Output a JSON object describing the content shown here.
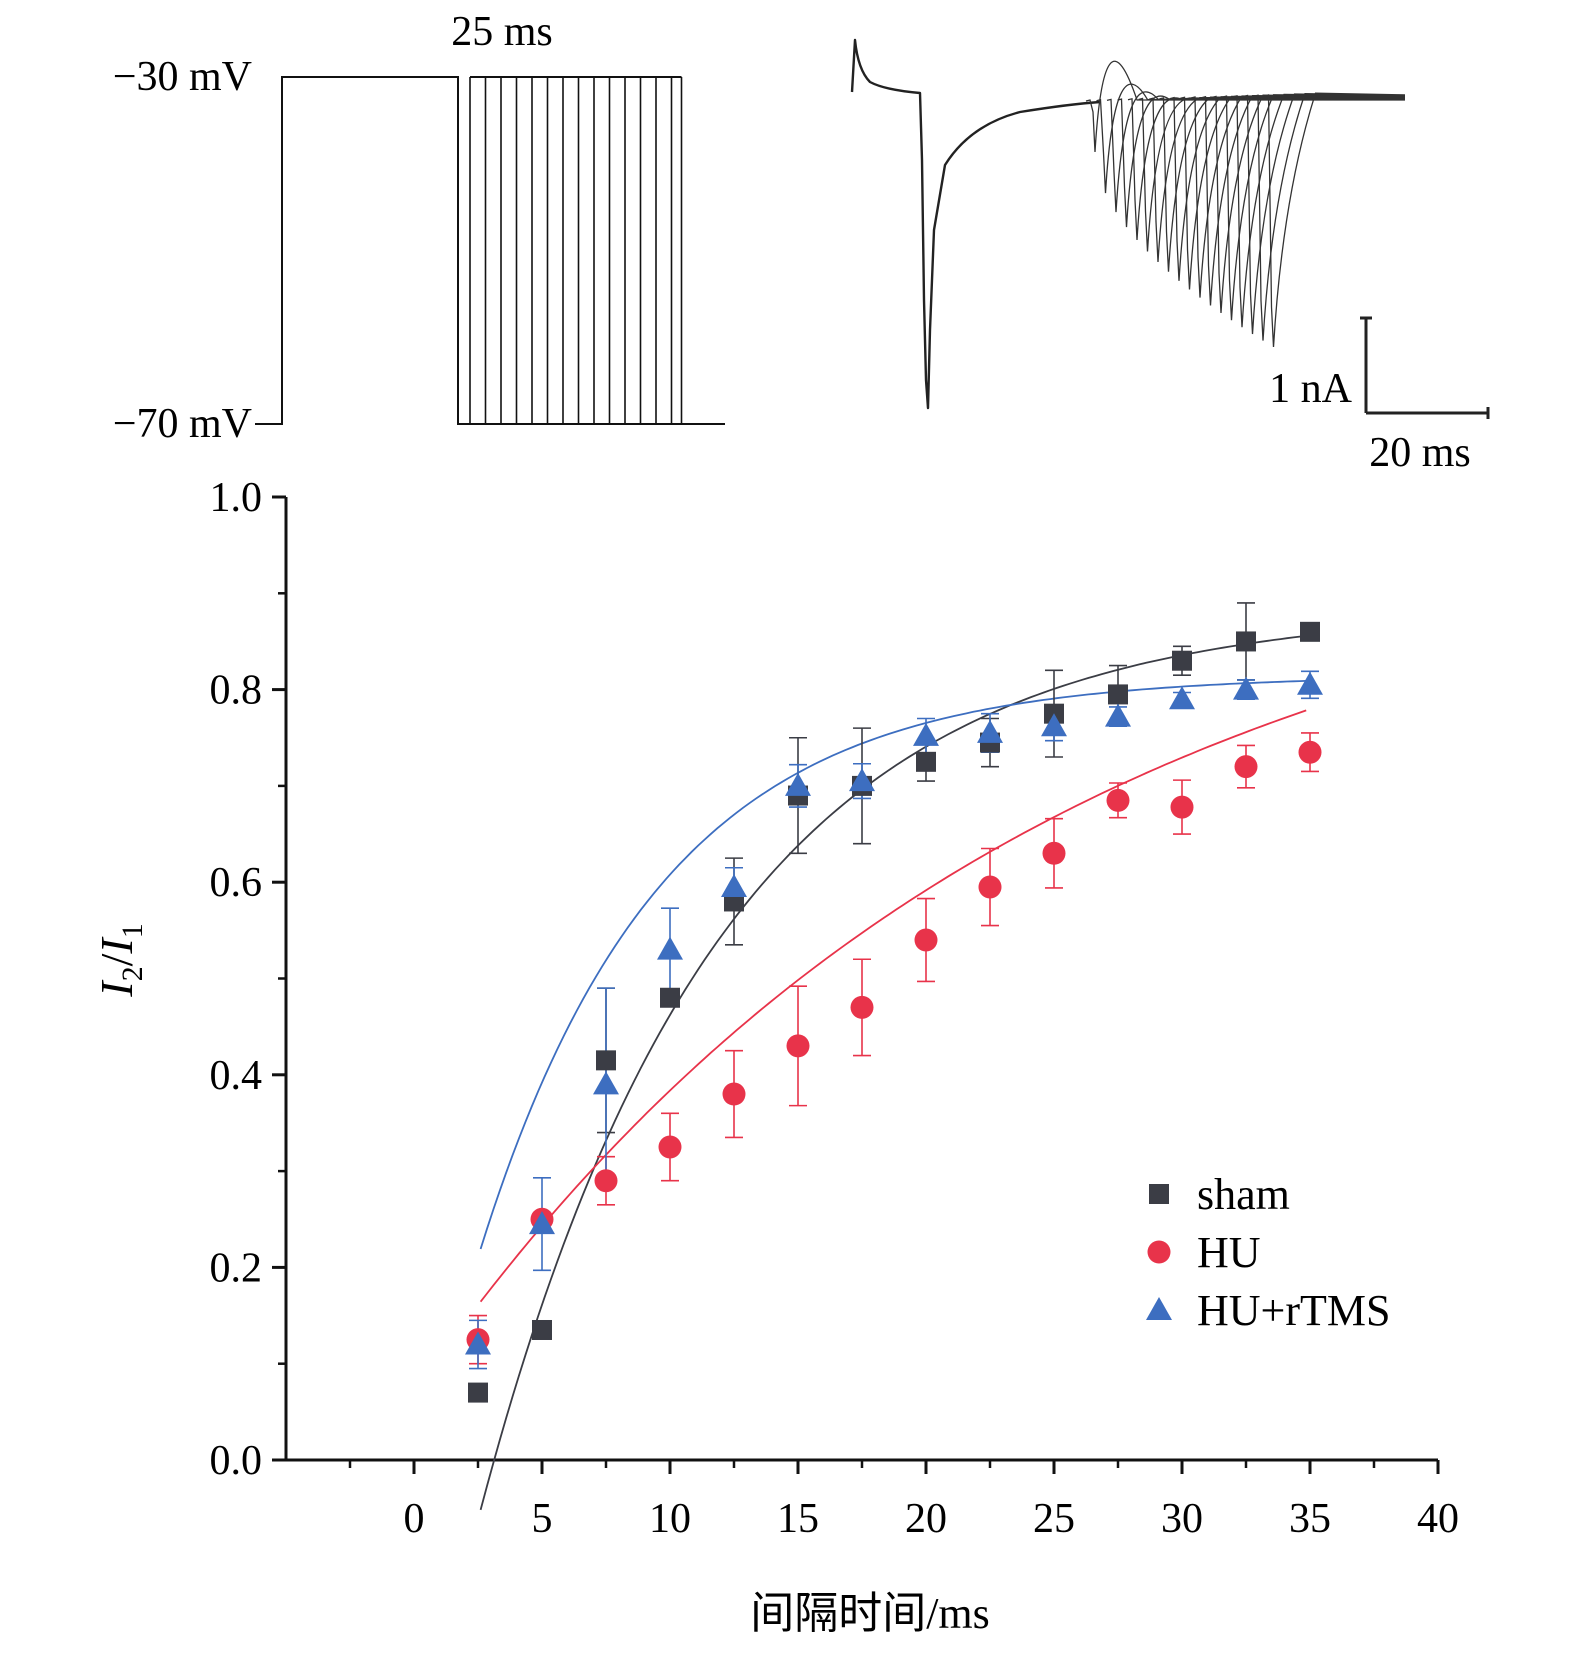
{
  "protocol": {
    "v_high_label": "−30 mV",
    "v_low_label": "−70 mV",
    "duration_label": "25 ms",
    "n_test_pulses": 14
  },
  "trace": {
    "current_scale_label": "1 nA",
    "time_scale_label": "20 ms"
  },
  "chart_data": {
    "type": "scatter",
    "title": "",
    "xlabel": "间隔时间/ms",
    "ylabel": {
      "main": "I",
      "sub1": "2",
      "slash": "/",
      "main2": "I",
      "sub2": "1"
    },
    "xlim": [
      -5,
      40
    ],
    "ylim": [
      0,
      1.0
    ],
    "xticks": [
      0,
      5,
      10,
      15,
      20,
      25,
      30,
      35,
      40
    ],
    "yticks": [
      0.0,
      0.2,
      0.4,
      0.6,
      0.8,
      1.0
    ],
    "ytick_labels": [
      "0.0",
      "0.2",
      "0.4",
      "0.6",
      "0.8",
      "1.0"
    ],
    "grid": false,
    "legend_position": "bottom-right",
    "x": [
      2.5,
      5,
      7.5,
      10,
      12.5,
      15,
      17.5,
      20,
      22.5,
      25,
      27.5,
      30,
      32.5,
      35
    ],
    "series": [
      {
        "name": "sham",
        "marker": "square",
        "color": "#3b3d45",
        "values": [
          0.07,
          0.135,
          0.415,
          0.48,
          0.58,
          0.69,
          0.7,
          0.725,
          0.745,
          0.775,
          0.795,
          0.83,
          0.85,
          0.86
        ],
        "errors": [
          0,
          0,
          0.075,
          0,
          0.045,
          0.06,
          0.06,
          0.02,
          0.025,
          0.045,
          0.03,
          0.015,
          0.04,
          0
        ],
        "fit": {
          "a": 0.885,
          "b": 1.4,
          "tau": 9.3
        }
      },
      {
        "name": "HU",
        "marker": "circle",
        "color": "#e8334a",
        "values": [
          0.125,
          0.25,
          0.29,
          0.325,
          0.38,
          0.43,
          0.47,
          0.54,
          0.595,
          0.63,
          0.685,
          0.678,
          0.72,
          0.735
        ],
        "errors": [
          0.025,
          0,
          0.025,
          0.035,
          0.045,
          0.062,
          0.05,
          0.043,
          0.04,
          0.036,
          0.018,
          0.028,
          0.022,
          0.02
        ],
        "fit": {
          "a": 1.0,
          "b": 0.93,
          "tau": 24.3
        }
      },
      {
        "name": "HU+rTMS",
        "marker": "triangle",
        "color": "#3d6ec0",
        "values": [
          0.12,
          0.245,
          0.39,
          0.53,
          0.595,
          0.7,
          0.705,
          0.752,
          0.755,
          0.762,
          0.772,
          0.79,
          0.8,
          0.805
        ],
        "errors": [
          0.025,
          0.048,
          0.1,
          0.043,
          0.02,
          0.022,
          0.018,
          0.018,
          0.02,
          0.015,
          0.01,
          0.007,
          0.01,
          0.014
        ],
        "fit": {
          "a": 0.815,
          "b": 1.06,
          "tau": 7.0
        }
      }
    ]
  }
}
